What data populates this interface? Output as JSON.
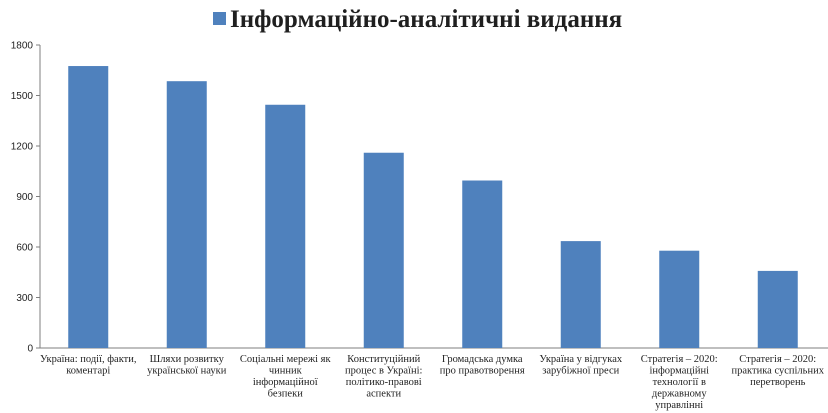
{
  "chart_data": {
    "type": "bar",
    "series": [
      {
        "name": "Інформаційно-аналітичні видання",
        "color": "#4f81bd",
        "values": [
          1675,
          1585,
          1445,
          1160,
          995,
          635,
          578,
          458
        ]
      }
    ],
    "categories": [
      [
        "Україна: події, факти,",
        "коментарі"
      ],
      [
        "Шляхи розвитку",
        "української науки"
      ],
      [
        "Соціальні мережі як",
        "чинник",
        "інформаційної",
        "безпеки"
      ],
      [
        "Конституційний",
        "процес в Україні:",
        "політико-правові",
        "аспекти"
      ],
      [
        "Громадська думка",
        "про правотворення"
      ],
      [
        "Україна у відгуках",
        "зарубіжної преси"
      ],
      [
        "Стратегія – 2020:",
        "інформаційні",
        "технології в",
        "державному",
        "управлінні"
      ],
      [
        "Стратегія – 2020:",
        "практика суспільних",
        "перетворень"
      ]
    ],
    "y_ticks": [
      "0",
      "300",
      "600",
      "900",
      "1200",
      "1500",
      "1800"
    ],
    "ylim": [
      0,
      1800
    ],
    "legend_position": "top"
  }
}
